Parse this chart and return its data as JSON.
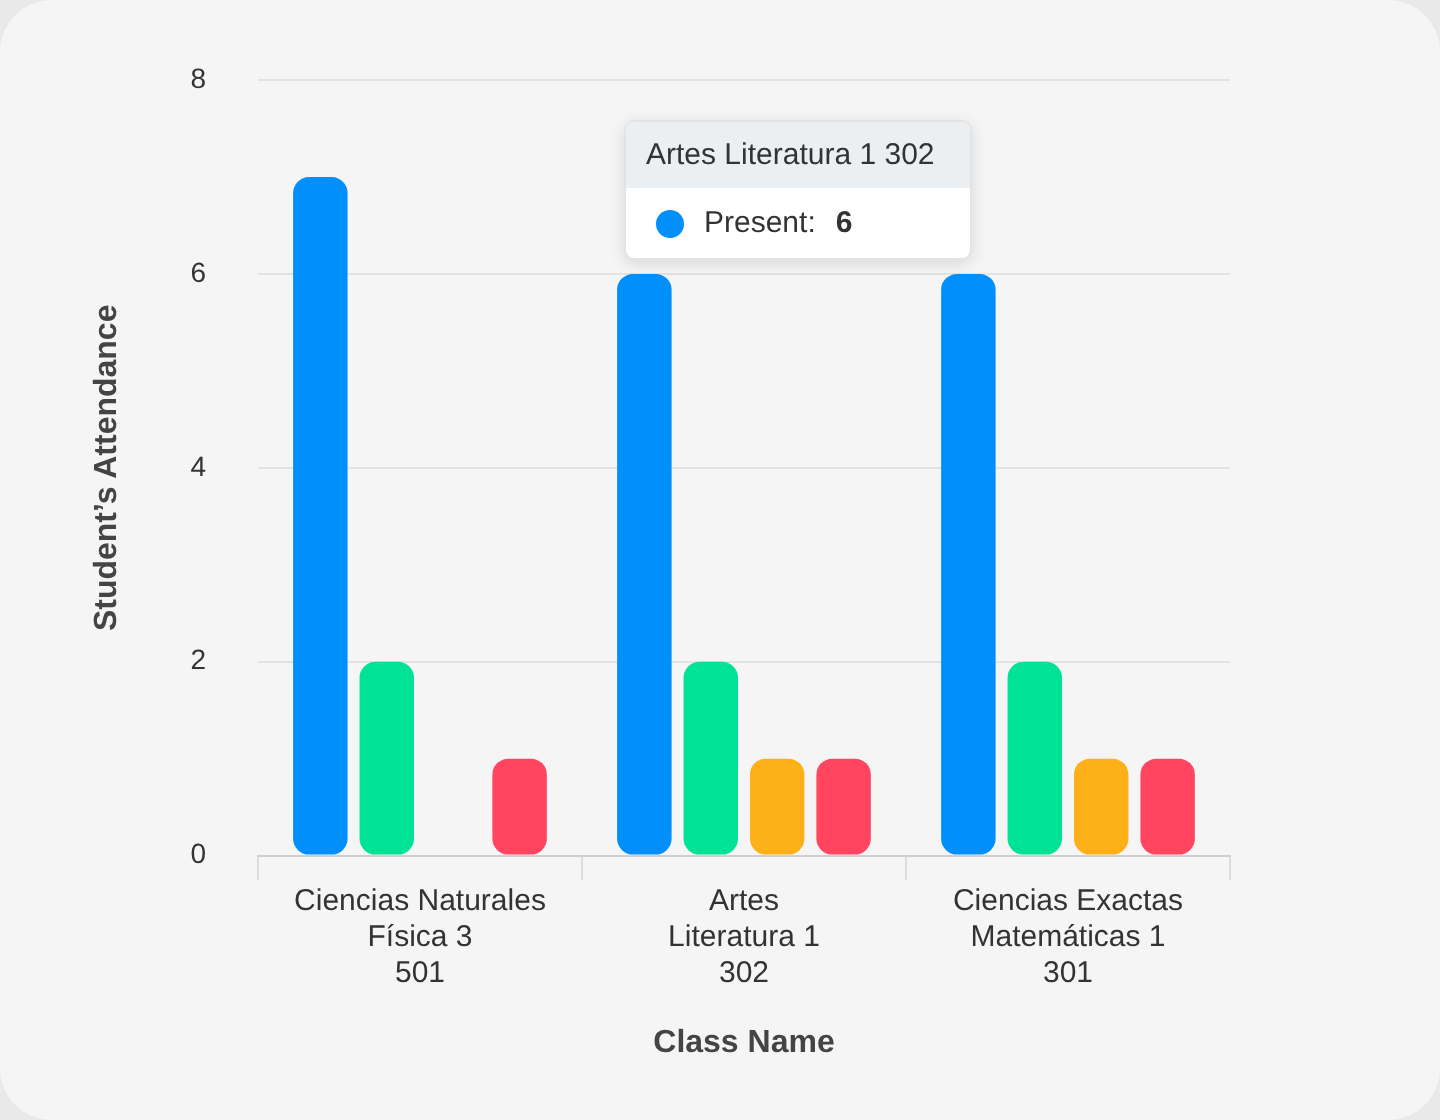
{
  "chart_data": {
    "type": "bar",
    "xlabel": "Class Name",
    "ylabel": "Student’s Attendance",
    "categories": [
      "Ciencias Naturales\nFísica 3\n501",
      "Artes\nLiteratura 1\n302",
      "Ciencias Exactas\nMatemáticas 1\n301"
    ],
    "series": [
      {
        "color": "#008ffb",
        "values": [
          7,
          6,
          6
        ]
      },
      {
        "color": "#00e396",
        "values": [
          2,
          2,
          2
        ]
      },
      {
        "color": "#feb019",
        "values": [
          null,
          1,
          1
        ]
      },
      {
        "color": "#ff4560",
        "values": [
          1,
          1,
          1
        ]
      }
    ],
    "ylim": [
      0,
      8
    ],
    "yticks": [
      0,
      2,
      4,
      6,
      8
    ],
    "grid": "y",
    "legend": false,
    "annotations": [
      "Artes Literatura 1 302",
      "Present: 6"
    ]
  }
}
